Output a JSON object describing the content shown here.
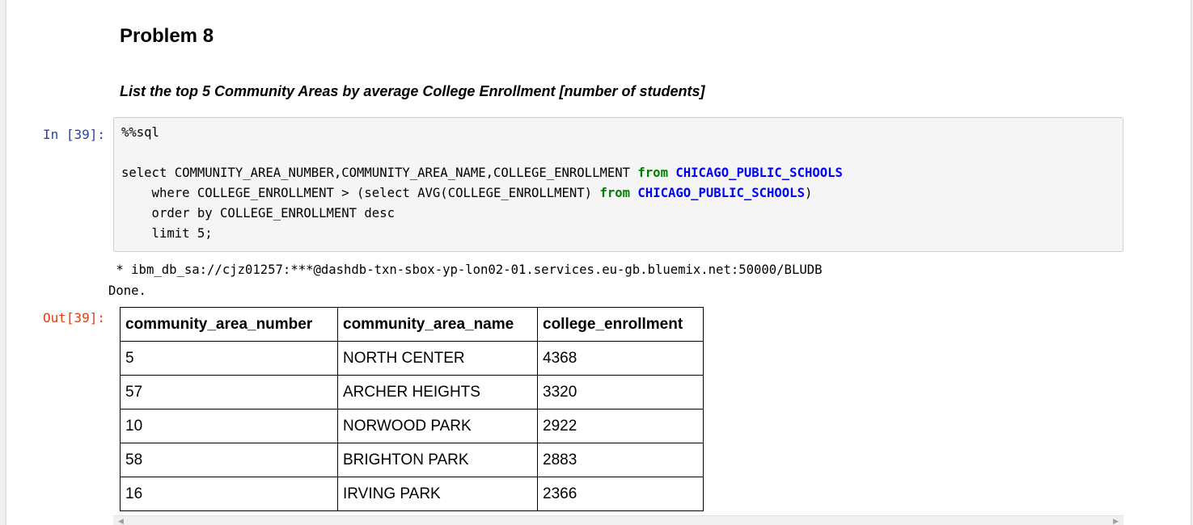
{
  "markdown": {
    "heading": "Problem 8",
    "subheading": "List the top 5 Community Areas by average College Enrollment [number of students]"
  },
  "cell": {
    "in_prompt": "In [39]:",
    "out_prompt": "Out[39]:",
    "code": {
      "magic": "%%sql",
      "line1_pre": "select COMMUNITY_AREA_NUMBER,COMMUNITY_AREA_NAME,COLLEGE_ENROLLMENT ",
      "line1_kw": "from",
      "line1_table": "CHICAGO_PUBLIC_SCHOOLS",
      "line2_pre": "    where COLLEGE_ENROLLMENT > (select AVG(COLLEGE_ENROLLMENT) ",
      "line2_kw": "from",
      "line2_table": "CHICAGO_PUBLIC_SCHOOLS",
      "line2_post": ")",
      "line3": "    order by COLLEGE_ENROLLMENT desc",
      "line4_pre": "    limit ",
      "line4_num": "5",
      "line4_post": ";"
    },
    "stdout": {
      "connection": " * ibm_db_sa://cjz01257:***@dashdb-txn-sbox-yp-lon02-01.services.eu-gb.bluemix.net:50000/BLUDB",
      "status": "Done."
    },
    "table": {
      "headers": [
        "community_area_number",
        "community_area_name",
        "college_enrollment"
      ],
      "rows": [
        [
          "5",
          "NORTH CENTER",
          "4368"
        ],
        [
          "57",
          "ARCHER HEIGHTS",
          "3320"
        ],
        [
          "10",
          "NORWOOD PARK",
          "2922"
        ],
        [
          "58",
          "BRIGHTON PARK",
          "2883"
        ],
        [
          "16",
          "IRVING PARK",
          "2366"
        ]
      ]
    },
    "scrollbar": {
      "left_arrow": "◀",
      "right_arrow": "▶"
    }
  }
}
